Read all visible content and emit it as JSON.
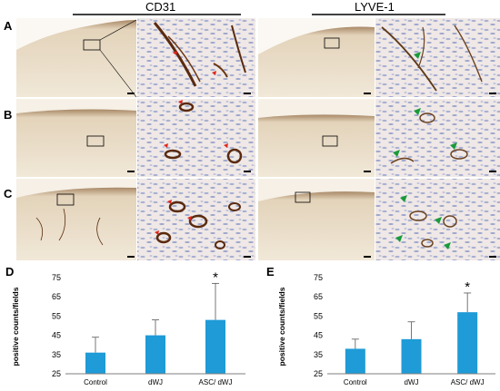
{
  "stain_labels": [
    "CD31",
    "LYVE-1"
  ],
  "row_labels": [
    "A",
    "B",
    "C"
  ],
  "chart_data": [
    {
      "type": "bar",
      "panel": "D",
      "categories": [
        "Control",
        "dWJ",
        "ASC/ dWJ"
      ],
      "values": [
        36,
        45,
        53
      ],
      "error": [
        8,
        8,
        19
      ],
      "significance": [
        "",
        "",
        "*"
      ],
      "ylabel": "positive counts/fields",
      "ylim": [
        25,
        75
      ],
      "yticks": [
        25,
        35,
        45,
        55,
        65,
        75
      ],
      "bar_color": "#1f9bd7",
      "grid": false
    },
    {
      "type": "bar",
      "panel": "E",
      "categories": [
        "Control",
        "dWJ",
        "ASC/ dWJ"
      ],
      "values": [
        38,
        43,
        57
      ],
      "error": [
        5,
        9,
        10
      ],
      "significance": [
        "",
        "",
        "*"
      ],
      "ylabel": "positive counts/fields",
      "ylim": [
        25,
        75
      ],
      "yticks": [
        25,
        35,
        45,
        55,
        65,
        75
      ],
      "bar_color": "#1f9bd7",
      "grid": false
    }
  ],
  "colors": {
    "tissue_bg": "#f3ecdf",
    "dermis": "#e8dcc6",
    "epidermis": "#8a6a4a",
    "cd31_stain": "#5a2a0e",
    "arrow_red": "#e0261c",
    "arrow_green": "#1a9a3a",
    "nuclei": "#9aa3c8"
  },
  "icons": [
    "red-arrow-icon",
    "green-arrow-icon",
    "scale-bar-icon"
  ]
}
